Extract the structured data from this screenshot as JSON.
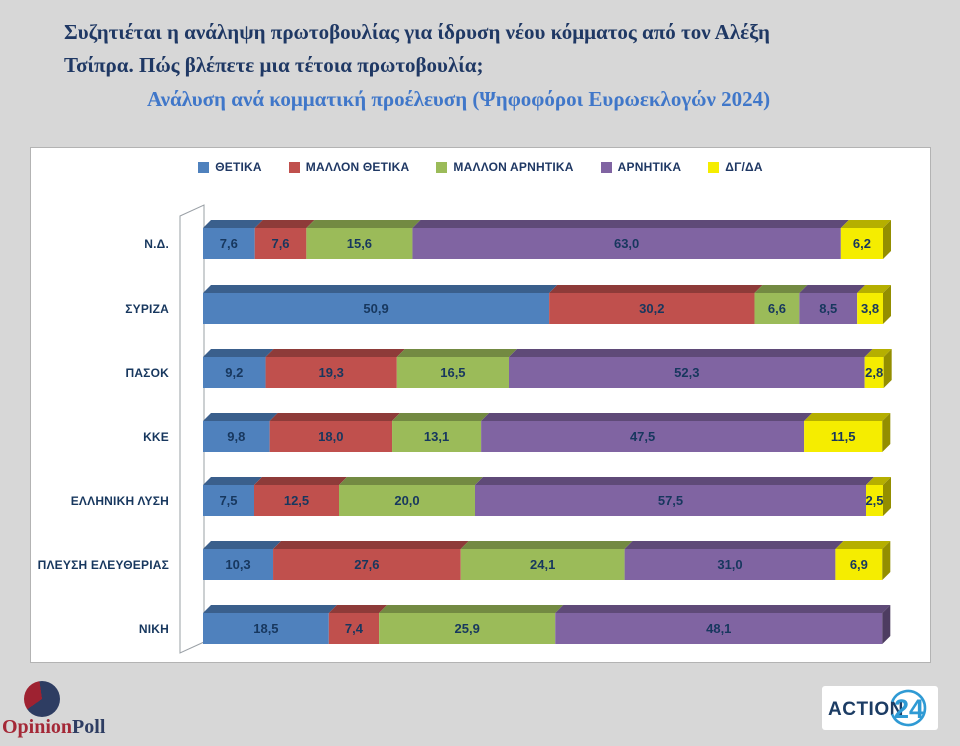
{
  "title": {
    "line1": "Συζητιέται η ανάληψη πρωτοβουλίας για ίδρυση νέου κόμματος από τον Αλέξη",
    "line2": "Τσίπρα. Πώς βλέπετε μια τέτοια πρωτοβουλία;",
    "subtitle": "Ανάλυση ανά κομματική προέλευση (Ψηφοφόροι Ευρωεκλογών 2024)"
  },
  "colors": {
    "background": "#d7d7d7",
    "panel": "#ffffff",
    "title_text": "#1f3864",
    "subtitle_text": "#4077c9",
    "label_text": "#17375e",
    "series_blue": "#4f81bd",
    "series_red": "#c0504d",
    "series_green": "#9bbb59",
    "series_purple": "#8064a2",
    "series_yellow": "#f5ed00"
  },
  "chart_data": {
    "type": "bar",
    "orientation": "horizontal",
    "stacked": true,
    "effect": "3d",
    "value_format": "one decimal, comma separator",
    "xlim": [
      0,
      100
    ],
    "grid": false,
    "legend_position": "top-center",
    "categories": [
      "Ν.Δ.",
      "ΣΥΡΙΖΑ",
      "ΠΑΣΟΚ",
      "ΚΚΕ",
      "ΕΛΛΗΝΙΚΗ ΛΥΣΗ",
      "ΠΛΕΥΣΗ ΕΛΕΥΘΕΡΙΑΣ",
      "ΝΙΚΗ"
    ],
    "series": [
      {
        "name": "ΘΕΤΙΚΑ",
        "color": "#4f81bd",
        "values": [
          7.6,
          50.9,
          9.2,
          9.8,
          7.5,
          10.3,
          18.5
        ]
      },
      {
        "name": "ΜΑΛΛΟΝ ΘΕΤΙΚΑ",
        "color": "#c0504d",
        "values": [
          7.6,
          30.2,
          19.3,
          18.0,
          12.5,
          27.6,
          7.4
        ]
      },
      {
        "name": "ΜΑΛΛΟΝ ΑΡΝΗΤΙΚΑ",
        "color": "#9bbb59",
        "values": [
          15.6,
          6.6,
          16.5,
          13.1,
          20.0,
          24.1,
          25.9
        ]
      },
      {
        "name": "ΑΡΝΗΤΙΚΑ",
        "color": "#8064a2",
        "values": [
          63.0,
          8.5,
          52.3,
          47.5,
          57.5,
          31.0,
          48.1
        ]
      },
      {
        "name": "ΔΓ/ΔΑ",
        "color": "#f5ed00",
        "values": [
          6.2,
          3.8,
          2.8,
          11.5,
          2.5,
          6.9,
          null
        ]
      }
    ]
  },
  "footer": {
    "opinionpoll": {
      "part1": "Opinion",
      "part2": "Poll"
    },
    "action24": {
      "word": "ACTION",
      "number": "24"
    }
  }
}
